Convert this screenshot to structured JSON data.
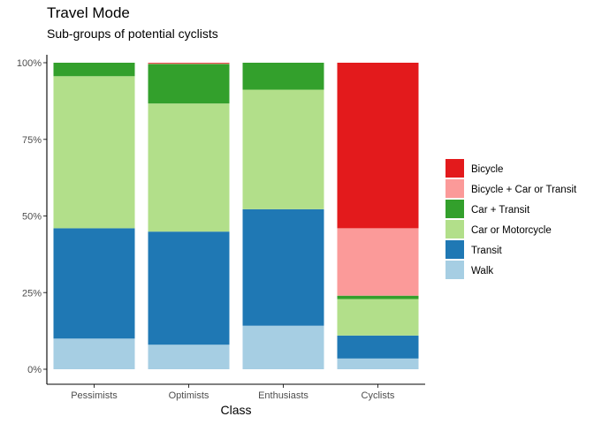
{
  "chart_data": {
    "type": "bar",
    "stacked": "percent",
    "title": "Travel Mode",
    "subtitle": "Sub-groups of potential cyclists",
    "xlabel": "Class",
    "ylabel": "",
    "ylim": [
      0,
      1
    ],
    "yticks": [
      0,
      0.25,
      0.5,
      0.75,
      1
    ],
    "ytick_labels": [
      "0%",
      "25%",
      "50%",
      "75%",
      "100%"
    ],
    "grid": false,
    "legend_position": "right",
    "categories": [
      "Pessimists",
      "Optimists",
      "Enthusiasts",
      "Cyclists"
    ],
    "series": [
      {
        "name": "Bicycle",
        "color": "#e31a1c",
        "values": [
          0.0,
          0.002,
          0.0,
          0.54
        ]
      },
      {
        "name": "Bicycle + Car or Transit",
        "color": "#fb9a99",
        "values": [
          0.0,
          0.002,
          0.0,
          0.22
        ]
      },
      {
        "name": "Car + Transit",
        "color": "#33a02c",
        "values": [
          0.044,
          0.129,
          0.088,
          0.011
        ]
      },
      {
        "name": "Car or Motorcycle",
        "color": "#b2df8a",
        "values": [
          0.496,
          0.418,
          0.39,
          0.119
        ]
      },
      {
        "name": "Transit",
        "color": "#1f78b4",
        "values": [
          0.36,
          0.369,
          0.38,
          0.075
        ]
      },
      {
        "name": "Walk",
        "color": "#a6cee3",
        "values": [
          0.1,
          0.08,
          0.142,
          0.035
        ]
      }
    ]
  }
}
